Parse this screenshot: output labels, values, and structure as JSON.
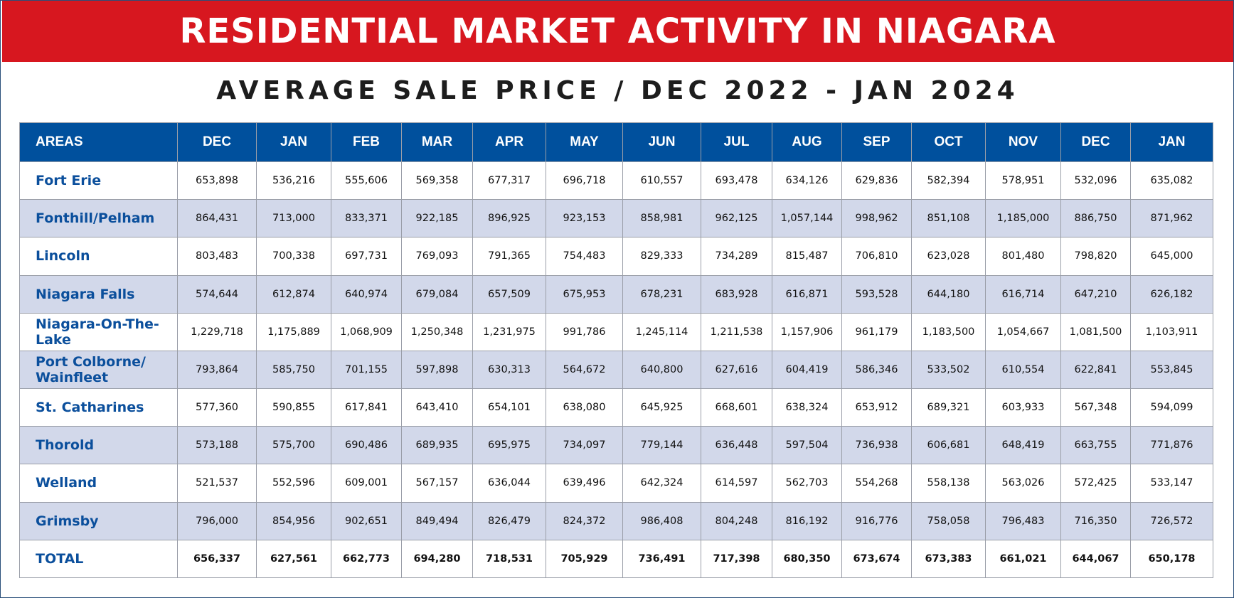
{
  "title": "RESIDENTIAL MARKET ACTIVITY IN NIAGARA",
  "subtitle": "AVERAGE SALE PRICE / DEC 2022 - JAN 2024",
  "colors": {
    "banner": "#d7171f",
    "header": "#00509d",
    "area_text": "#0b4f9c",
    "band": "#d2d8ea"
  },
  "chart_data": {
    "type": "table",
    "title": "AVERAGE SALE PRICE / DEC 2022 - JAN 2024",
    "corner_label": "AREAS",
    "columns": [
      "DEC",
      "JAN",
      "FEB",
      "MAR",
      "APR",
      "MAY",
      "JUN",
      "JUL",
      "AUG",
      "SEP",
      "OCT",
      "NOV",
      "DEC",
      "JAN"
    ],
    "rows": [
      {
        "area": "Fort Erie",
        "values": [
          "653,898",
          "536,216",
          "555,606",
          "569,358",
          "677,317",
          "696,718",
          "610,557",
          "693,478",
          "634,126",
          "629,836",
          "582,394",
          "578,951",
          "532,096",
          "635,082"
        ]
      },
      {
        "area": "Fonthill/Pelham",
        "values": [
          "864,431",
          "713,000",
          "833,371",
          "922,185",
          "896,925",
          "923,153",
          "858,981",
          "962,125",
          "1,057,144",
          "998,962",
          "851,108",
          "1,185,000",
          "886,750",
          "871,962"
        ]
      },
      {
        "area": "Lincoln",
        "values": [
          "803,483",
          "700,338",
          "697,731",
          "769,093",
          "791,365",
          "754,483",
          "829,333",
          "734,289",
          "815,487",
          "706,810",
          "623,028",
          "801,480",
          "798,820",
          "645,000"
        ]
      },
      {
        "area": "Niagara Falls",
        "values": [
          "574,644",
          "612,874",
          "640,974",
          "679,084",
          "657,509",
          "675,953",
          "678,231",
          "683,928",
          "616,871",
          "593,528",
          "644,180",
          "616,714",
          "647,210",
          "626,182"
        ]
      },
      {
        "area": "Niagara-On-The-Lake",
        "values": [
          "1,229,718",
          "1,175,889",
          "1,068,909",
          "1,250,348",
          "1,231,975",
          "991,786",
          "1,245,114",
          "1,211,538",
          "1,157,906",
          "961,179",
          "1,183,500",
          "1,054,667",
          "1,081,500",
          "1,103,911"
        ]
      },
      {
        "area": "Port Colborne/ Wainfleet",
        "values": [
          "793,864",
          "585,750",
          "701,155",
          "597,898",
          "630,313",
          "564,672",
          "640,800",
          "627,616",
          "604,419",
          "586,346",
          "533,502",
          "610,554",
          "622,841",
          "553,845"
        ]
      },
      {
        "area": "St. Catharines",
        "values": [
          "577,360",
          "590,855",
          "617,841",
          "643,410",
          "654,101",
          "638,080",
          "645,925",
          "668,601",
          "638,324",
          "653,912",
          "689,321",
          "603,933",
          "567,348",
          "594,099"
        ]
      },
      {
        "area": "Thorold",
        "values": [
          "573,188",
          "575,700",
          "690,486",
          "689,935",
          "695,975",
          "734,097",
          "779,144",
          "636,448",
          "597,504",
          "736,938",
          "606,681",
          "648,419",
          "663,755",
          "771,876"
        ]
      },
      {
        "area": "Welland",
        "values": [
          "521,537",
          "552,596",
          "609,001",
          "567,157",
          "636,044",
          "639,496",
          "642,324",
          "614,597",
          "562,703",
          "554,268",
          "558,138",
          "563,026",
          "572,425",
          "533,147"
        ]
      },
      {
        "area": "Grimsby",
        "values": [
          "796,000",
          "854,956",
          "902,651",
          "849,494",
          "826,479",
          "824,372",
          "986,408",
          "804,248",
          "816,192",
          "916,776",
          "758,058",
          "796,483",
          "716,350",
          "726,572"
        ]
      }
    ],
    "total": {
      "area": "TOTAL",
      "values": [
        "656,337",
        "627,561",
        "662,773",
        "694,280",
        "718,531",
        "705,929",
        "736,491",
        "717,398",
        "680,350",
        "673,674",
        "673,383",
        "661,021",
        "644,067",
        "650,178"
      ]
    }
  }
}
